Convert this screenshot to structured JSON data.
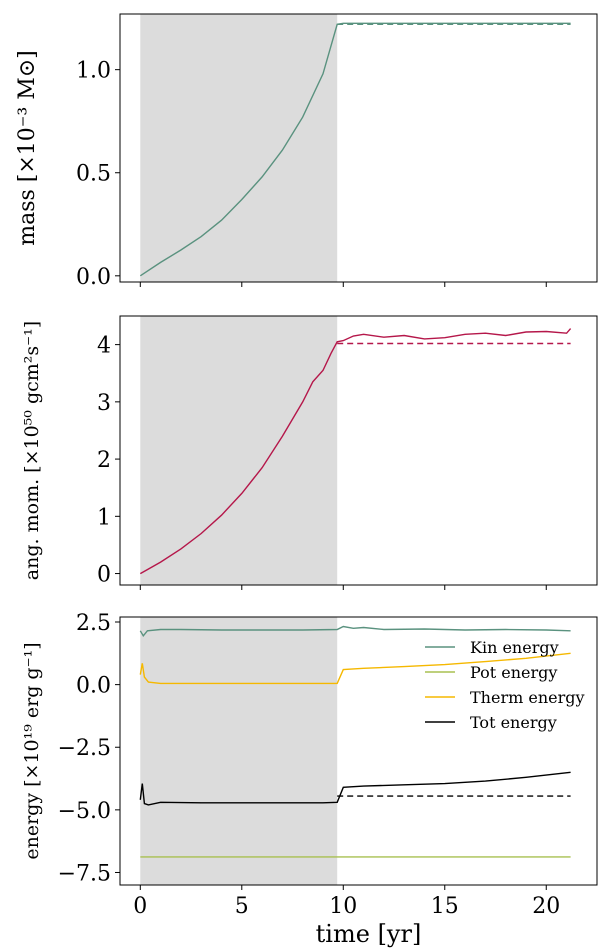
{
  "figure": {
    "xlabel": "time [yr]",
    "xlim": [
      -1,
      22.5
    ],
    "xticks": [
      0,
      5,
      10,
      15,
      20
    ],
    "shade_range": [
      0,
      9.7
    ]
  },
  "chart_data": [
    {
      "type": "line",
      "ylabel": "mass [×10⁻³ M⊙]",
      "ylim": [
        -0.03,
        1.27
      ],
      "yticks": [
        "0.0",
        "0.5",
        "1.0"
      ],
      "ytick_values": [
        0,
        0.5,
        1.0
      ],
      "series": [
        {
          "color": "#5a927f",
          "style": "solid",
          "x": [
            0,
            1,
            2,
            3,
            4,
            5,
            6,
            7,
            8,
            9,
            9.7,
            10,
            12,
            14,
            16,
            18,
            20,
            21.2
          ],
          "y": [
            0,
            0.065,
            0.125,
            0.19,
            0.27,
            0.37,
            0.48,
            0.61,
            0.77,
            0.98,
            1.22,
            1.225,
            1.225,
            1.225,
            1.225,
            1.225,
            1.225,
            1.225
          ]
        },
        {
          "color": "#5a927f",
          "style": "dashed",
          "x": [
            9.7,
            21.2
          ],
          "y": [
            1.22,
            1.22
          ]
        }
      ]
    },
    {
      "type": "line",
      "ylabel": "ang. mom. [×10⁵⁰ gcm²s⁻¹]",
      "ylim": [
        -0.2,
        4.5
      ],
      "yticks": [
        "0",
        "1",
        "2",
        "3",
        "4"
      ],
      "ytick_values": [
        0,
        1,
        2,
        3,
        4
      ],
      "series": [
        {
          "color": "#b5174a",
          "style": "solid",
          "x": [
            0,
            1,
            2,
            3,
            4,
            5,
            6,
            7,
            8,
            8.5,
            9,
            9.4,
            9.7,
            10,
            10.5,
            11,
            12,
            13,
            14,
            15,
            16,
            17,
            18,
            19,
            20,
            21,
            21.2
          ],
          "y": [
            0,
            0.2,
            0.43,
            0.7,
            1.02,
            1.4,
            1.85,
            2.4,
            3.0,
            3.35,
            3.55,
            3.85,
            4.05,
            4.07,
            4.15,
            4.18,
            4.13,
            4.16,
            4.1,
            4.12,
            4.18,
            4.2,
            4.16,
            4.22,
            4.23,
            4.2,
            4.28
          ]
        },
        {
          "color": "#b5174a",
          "style": "dashed",
          "x": [
            9.7,
            21.2
          ],
          "y": [
            4.02,
            4.02
          ]
        }
      ]
    },
    {
      "type": "line",
      "ylabel": "energy [×10¹⁹ erg g⁻¹]",
      "ylim": [
        -8.0,
        2.7
      ],
      "yticks": [
        "2.5",
        "0.0",
        "−2.5",
        "−5.0",
        "−7.5"
      ],
      "ytick_values": [
        2.5,
        0.0,
        -2.5,
        -5.0,
        -7.5
      ],
      "legend_position": "center-right",
      "series": [
        {
          "name": "Kin energy",
          "color": "#5a927f",
          "style": "solid",
          "x": [
            0,
            0.15,
            0.35,
            1,
            2,
            4,
            6,
            8,
            9.7,
            10,
            10.5,
            11,
            12,
            14,
            16,
            18,
            20,
            21.2
          ],
          "y": [
            2.15,
            1.95,
            2.15,
            2.2,
            2.2,
            2.18,
            2.18,
            2.18,
            2.2,
            2.32,
            2.25,
            2.28,
            2.2,
            2.22,
            2.18,
            2.2,
            2.18,
            2.15
          ]
        },
        {
          "name": "Pot energy",
          "color": "#a8c050",
          "style": "solid",
          "x": [
            0,
            21.2
          ],
          "y": [
            -6.88,
            -6.88
          ]
        },
        {
          "name": "Therm energy",
          "color": "#f5b800",
          "style": "solid",
          "x": [
            0,
            0.1,
            0.2,
            0.4,
            1,
            3,
            5,
            7,
            9,
            9.7,
            10,
            11,
            13,
            15,
            17,
            19,
            21.2
          ],
          "y": [
            0.4,
            0.85,
            0.3,
            0.1,
            0.05,
            0.05,
            0.05,
            0.05,
            0.05,
            0.05,
            0.6,
            0.65,
            0.72,
            0.8,
            0.92,
            1.05,
            1.25
          ]
        },
        {
          "name": "Tot energy",
          "color": "#000000",
          "style": "solid",
          "x": [
            0,
            0.1,
            0.2,
            0.4,
            1,
            3,
            5,
            7,
            9,
            9.7,
            10,
            11,
            13,
            15,
            17,
            19,
            21.2
          ],
          "y": [
            -4.6,
            -3.95,
            -4.75,
            -4.8,
            -4.7,
            -4.72,
            -4.72,
            -4.72,
            -4.72,
            -4.7,
            -4.1,
            -4.05,
            -4.0,
            -3.95,
            -3.85,
            -3.7,
            -3.5
          ]
        },
        {
          "color": "#000000",
          "style": "dashed",
          "x": [
            9.7,
            21.2
          ],
          "y": [
            -4.45,
            -4.45
          ]
        }
      ]
    }
  ]
}
